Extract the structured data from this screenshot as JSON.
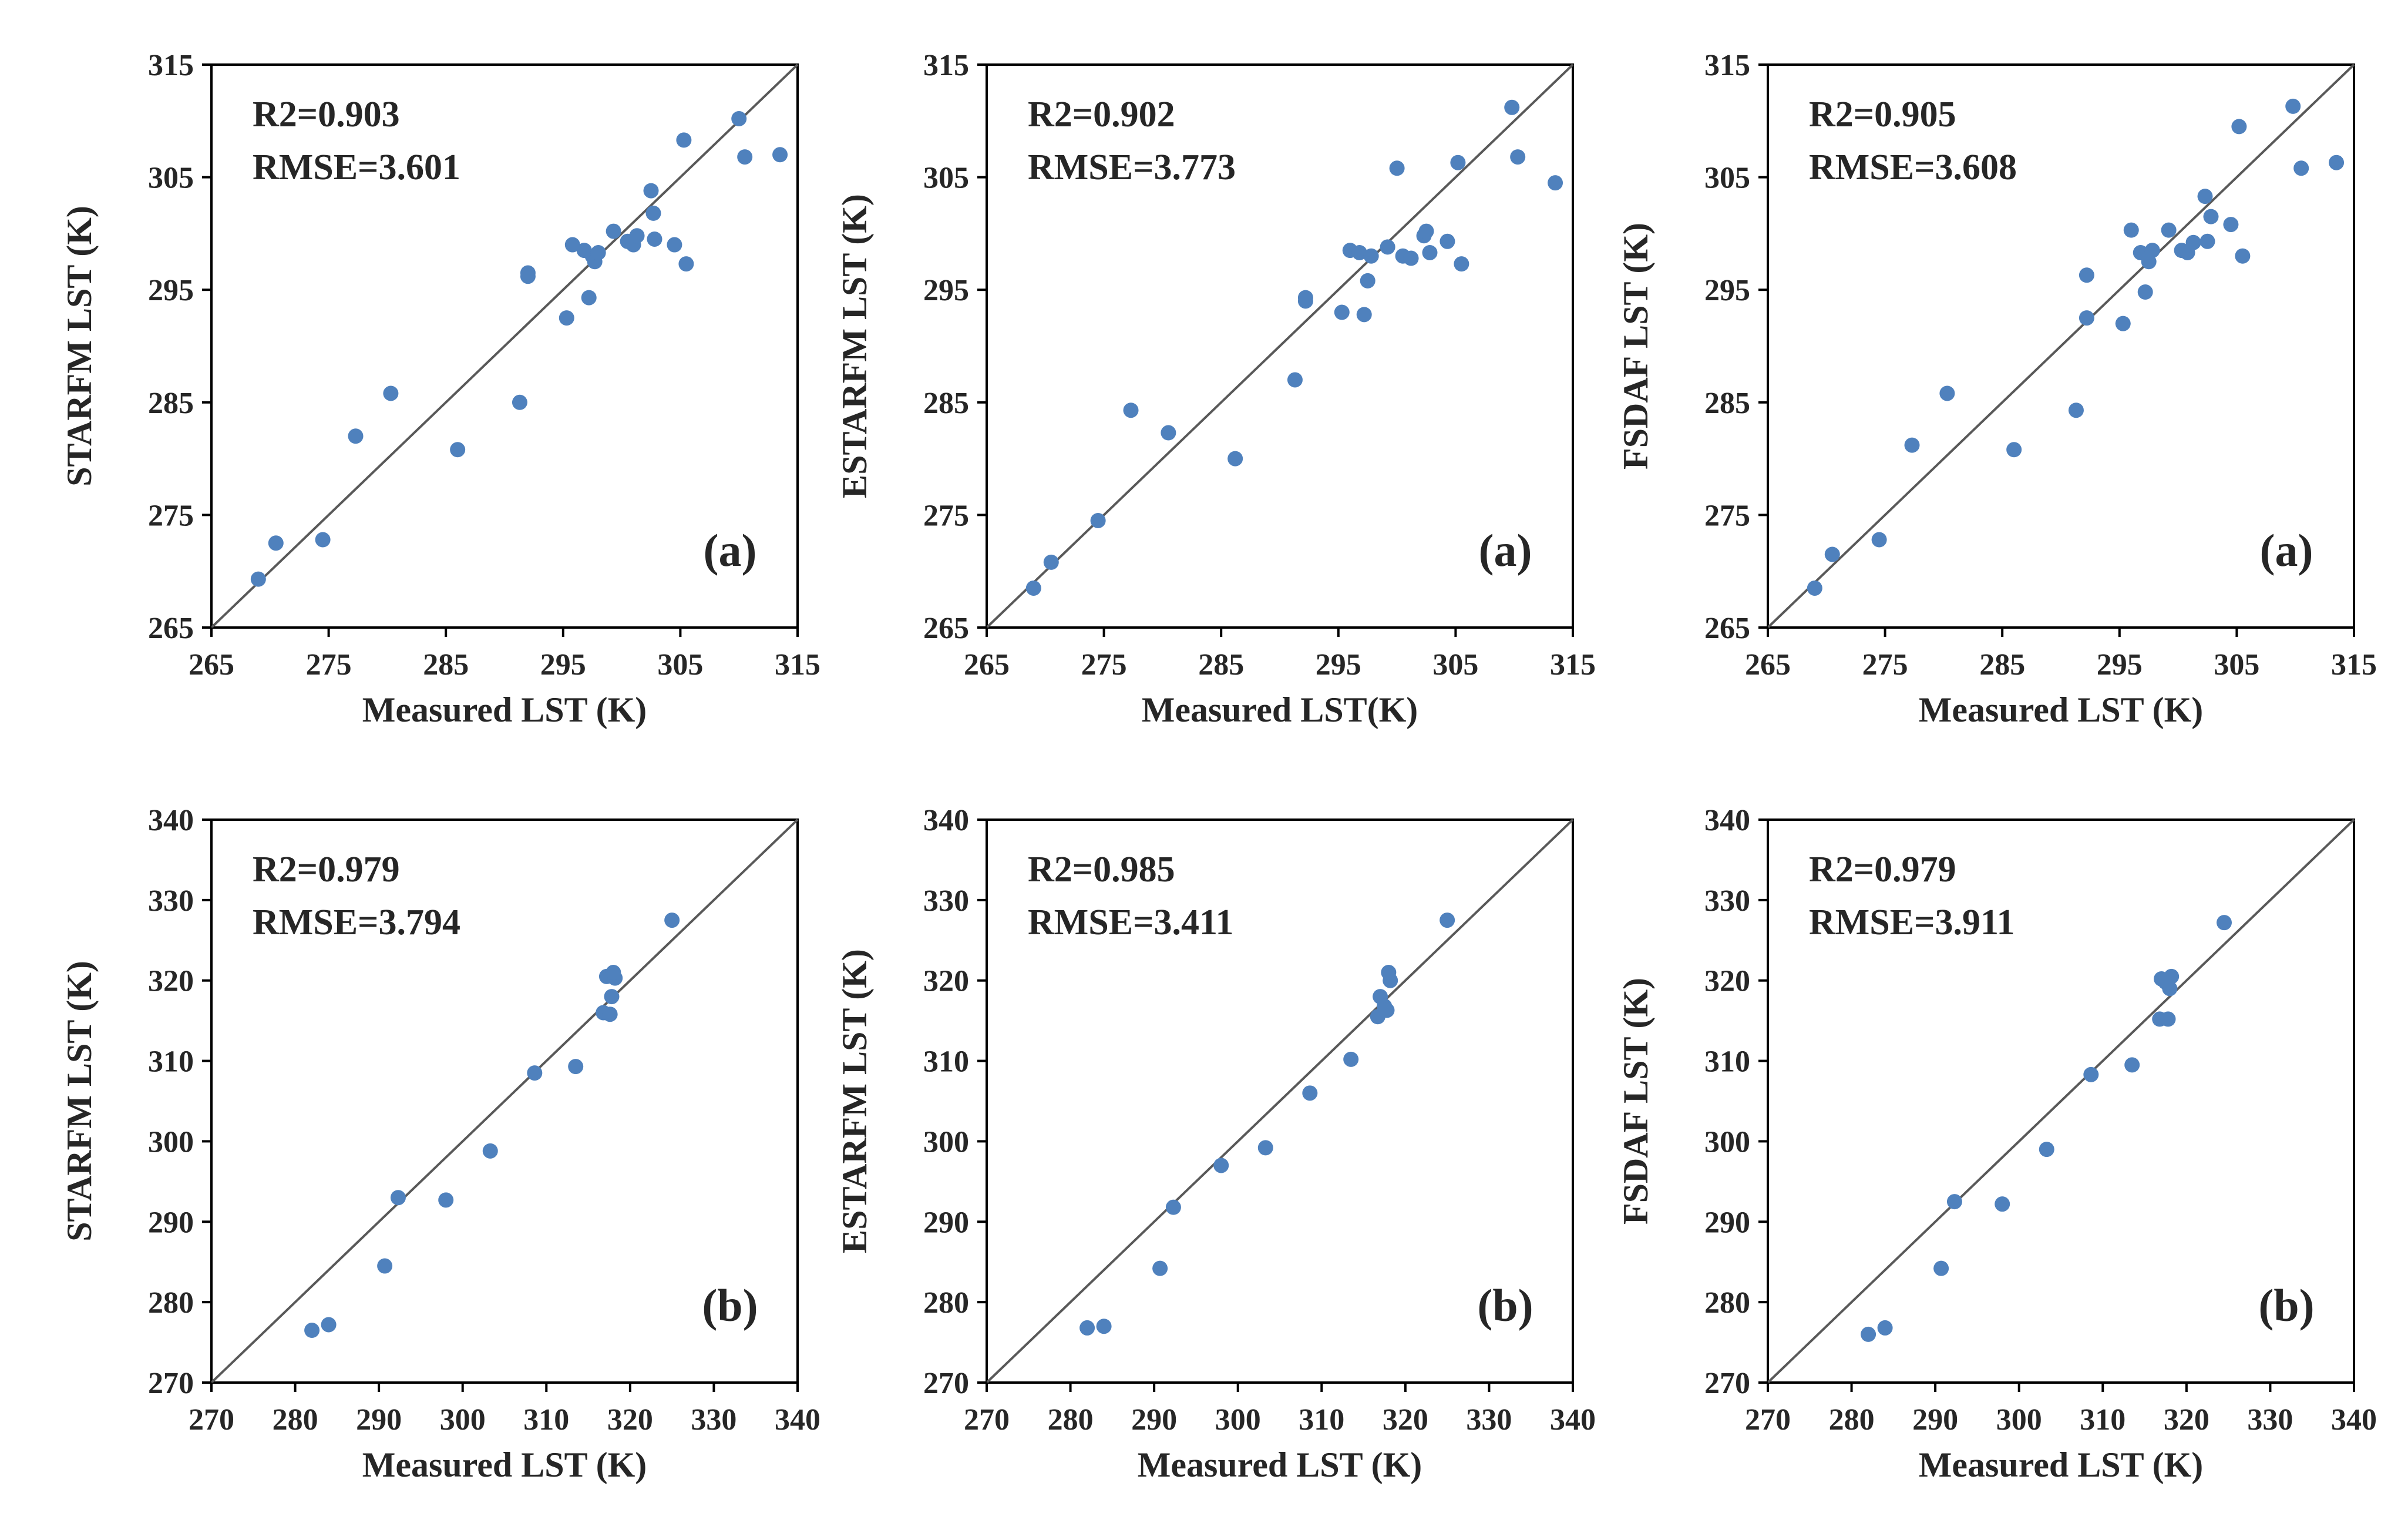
{
  "figure": {
    "point_color": "#4F81BD",
    "axis_color": "#000000",
    "line_color": "#595959"
  },
  "chart_data": [
    {
      "type": "scatter",
      "title": "",
      "panel_label": "(a)",
      "xlabel": "Measured LST (K)",
      "ylabel": "STARFM LST (K)",
      "xlim": [
        265,
        315
      ],
      "ylim": [
        265,
        315
      ],
      "xticks": [
        "265",
        "275",
        "285",
        "295",
        "305",
        "315"
      ],
      "yticks": [
        "265",
        "275",
        "285",
        "295",
        "305",
        "315"
      ],
      "r2_text": "R2=0.903",
      "rmse_text": "RMSE=3.601",
      "points": [
        [
          269,
          269.3
        ],
        [
          270.5,
          272.5
        ],
        [
          274.5,
          272.8
        ],
        [
          277.3,
          282
        ],
        [
          280.3,
          285.8
        ],
        [
          286,
          280.8
        ],
        [
          291.3,
          285
        ],
        [
          292,
          296.5
        ],
        [
          292,
          296.2
        ],
        [
          295.3,
          292.5
        ],
        [
          295.8,
          299
        ],
        [
          296.8,
          298.5
        ],
        [
          297.2,
          294.3
        ],
        [
          297.5,
          298
        ],
        [
          297.7,
          297.5
        ],
        [
          298,
          298.3
        ],
        [
          299.3,
          300.2
        ],
        [
          300.5,
          299.3
        ],
        [
          301,
          299
        ],
        [
          301.3,
          299.8
        ],
        [
          302.5,
          303.8
        ],
        [
          302.7,
          301.8
        ],
        [
          302.8,
          299.5
        ],
        [
          304.5,
          299
        ],
        [
          305.3,
          308.3
        ],
        [
          305.5,
          297.3
        ],
        [
          310,
          310.2
        ],
        [
          310.5,
          306.8
        ],
        [
          313.5,
          307
        ]
      ]
    },
    {
      "type": "scatter",
      "title": "",
      "panel_label": "(a)",
      "xlabel": "Measured LST(K)",
      "ylabel": "ESTARFM LST (K)",
      "xlim": [
        265,
        315
      ],
      "ylim": [
        265,
        315
      ],
      "xticks": [
        "265",
        "275",
        "285",
        "295",
        "305",
        "315"
      ],
      "yticks": [
        "265",
        "275",
        "285",
        "295",
        "305",
        "315"
      ],
      "r2_text": "R2=0.902",
      "rmse_text": "RMSE=3.773",
      "points": [
        [
          269,
          268.5
        ],
        [
          270.5,
          270.8
        ],
        [
          274.5,
          274.5
        ],
        [
          277.3,
          284.3
        ],
        [
          280.5,
          282.3
        ],
        [
          286.2,
          280
        ],
        [
          291.3,
          287
        ],
        [
          292.2,
          294
        ],
        [
          292.2,
          294.3
        ],
        [
          295.3,
          293
        ],
        [
          296,
          298.5
        ],
        [
          296.8,
          298.3
        ],
        [
          297.2,
          292.8
        ],
        [
          297.5,
          295.8
        ],
        [
          297.8,
          298
        ],
        [
          299.2,
          298.8
        ],
        [
          300,
          305.8
        ],
        [
          300.5,
          298
        ],
        [
          301.2,
          297.8
        ],
        [
          302.3,
          299.8
        ],
        [
          302.5,
          300.2
        ],
        [
          302.8,
          298.3
        ],
        [
          304.3,
          299.3
        ],
        [
          305.2,
          306.3
        ],
        [
          305.5,
          297.3
        ],
        [
          309.8,
          311.2
        ],
        [
          310.3,
          306.8
        ],
        [
          313.5,
          304.5
        ]
      ]
    },
    {
      "type": "scatter",
      "title": "",
      "panel_label": "(a)",
      "xlabel": "Measured LST (K)",
      "ylabel": "FSDAF LST (K)",
      "xlim": [
        265,
        315
      ],
      "ylim": [
        265,
        315
      ],
      "xticks": [
        "265",
        "275",
        "285",
        "295",
        "305",
        "315"
      ],
      "yticks": [
        "265",
        "275",
        "285",
        "295",
        "305",
        "315"
      ],
      "r2_text": "R2=0.905",
      "rmse_text": "RMSE=3.608",
      "points": [
        [
          269,
          268.5
        ],
        [
          270.5,
          271.5
        ],
        [
          274.5,
          272.8
        ],
        [
          277.3,
          281.2
        ],
        [
          280.3,
          285.8
        ],
        [
          286,
          280.8
        ],
        [
          291.3,
          284.3
        ],
        [
          292.2,
          296.3
        ],
        [
          292.2,
          292.5
        ],
        [
          295.3,
          292
        ],
        [
          296,
          300.3
        ],
        [
          296.8,
          298.3
        ],
        [
          297.2,
          294.8
        ],
        [
          297.5,
          297.5
        ],
        [
          297.8,
          298.5
        ],
        [
          299.2,
          300.3
        ],
        [
          300.3,
          298.5
        ],
        [
          300.8,
          298.3
        ],
        [
          301.3,
          299.2
        ],
        [
          302.3,
          303.3
        ],
        [
          302.5,
          299.3
        ],
        [
          302.8,
          301.5
        ],
        [
          304.5,
          300.8
        ],
        [
          305.2,
          309.5
        ],
        [
          305.5,
          298
        ],
        [
          309.8,
          311.3
        ],
        [
          310.5,
          305.8
        ],
        [
          313.5,
          306.3
        ]
      ]
    },
    {
      "type": "scatter",
      "title": "",
      "panel_label": "(b)",
      "xlabel": "Measured LST (K)",
      "ylabel": "STARFM LST (K)",
      "xlim": [
        270,
        340
      ],
      "ylim": [
        270,
        340
      ],
      "xticks": [
        "270",
        "280",
        "290",
        "300",
        "310",
        "320",
        "330",
        "340"
      ],
      "yticks": [
        "270",
        "280",
        "290",
        "300",
        "310",
        "320",
        "330",
        "340"
      ],
      "r2_text": "R2=0.979",
      "rmse_text": "RMSE=3.794",
      "points": [
        [
          282,
          276.5
        ],
        [
          284,
          277.2
        ],
        [
          290.7,
          284.5
        ],
        [
          292.3,
          293
        ],
        [
          298,
          292.7
        ],
        [
          303.3,
          298.8
        ],
        [
          308.6,
          308.5
        ],
        [
          313.5,
          309.3
        ],
        [
          316.8,
          316
        ],
        [
          317.2,
          320.5
        ],
        [
          317.6,
          315.8
        ],
        [
          317.8,
          318
        ],
        [
          318.2,
          320.3
        ],
        [
          318,
          321
        ],
        [
          325,
          327.5
        ]
      ]
    },
    {
      "type": "scatter",
      "title": "",
      "panel_label": "(b)",
      "xlabel": "Measured LST (K)",
      "ylabel": "ESTARFM LST (K)",
      "xlim": [
        270,
        340
      ],
      "ylim": [
        270,
        340
      ],
      "xticks": [
        "270",
        "280",
        "290",
        "300",
        "310",
        "320",
        "330",
        "340"
      ],
      "yticks": [
        "270",
        "280",
        "290",
        "300",
        "310",
        "320",
        "330",
        "340"
      ],
      "r2_text": "R2=0.985",
      "rmse_text": "RMSE=3.411",
      "points": [
        [
          282,
          276.8
        ],
        [
          284,
          277
        ],
        [
          290.7,
          284.2
        ],
        [
          292.3,
          291.8
        ],
        [
          298,
          297
        ],
        [
          303.3,
          299.2
        ],
        [
          308.6,
          306
        ],
        [
          313.5,
          310.2
        ],
        [
          316.7,
          315.5
        ],
        [
          317,
          318
        ],
        [
          317.5,
          316.8
        ],
        [
          317.8,
          316.3
        ],
        [
          318.2,
          320
        ],
        [
          318,
          321
        ],
        [
          325,
          327.5
        ]
      ]
    },
    {
      "type": "scatter",
      "title": "",
      "panel_label": "(b)",
      "xlabel": "Measured LST (K)",
      "ylabel": "FSDAF LST (K)",
      "xlim": [
        270,
        340
      ],
      "ylim": [
        270,
        340
      ],
      "xticks": [
        "270",
        "280",
        "290",
        "300",
        "310",
        "320",
        "330",
        "340"
      ],
      "yticks": [
        "270",
        "280",
        "290",
        "300",
        "310",
        "320",
        "330",
        "340"
      ],
      "r2_text": "R2=0.979",
      "rmse_text": "RMSE=3.911",
      "points": [
        [
          282,
          276
        ],
        [
          284,
          276.8
        ],
        [
          290.7,
          284.2
        ],
        [
          292.3,
          292.5
        ],
        [
          298,
          292.2
        ],
        [
          303.3,
          299
        ],
        [
          308.6,
          308.3
        ],
        [
          313.5,
          309.5
        ],
        [
          316.8,
          315.2
        ],
        [
          317,
          320.2
        ],
        [
          317.5,
          319.8
        ],
        [
          317.8,
          315.2
        ],
        [
          318.2,
          320.5
        ],
        [
          318,
          319
        ],
        [
          324.5,
          327.2
        ]
      ]
    }
  ]
}
